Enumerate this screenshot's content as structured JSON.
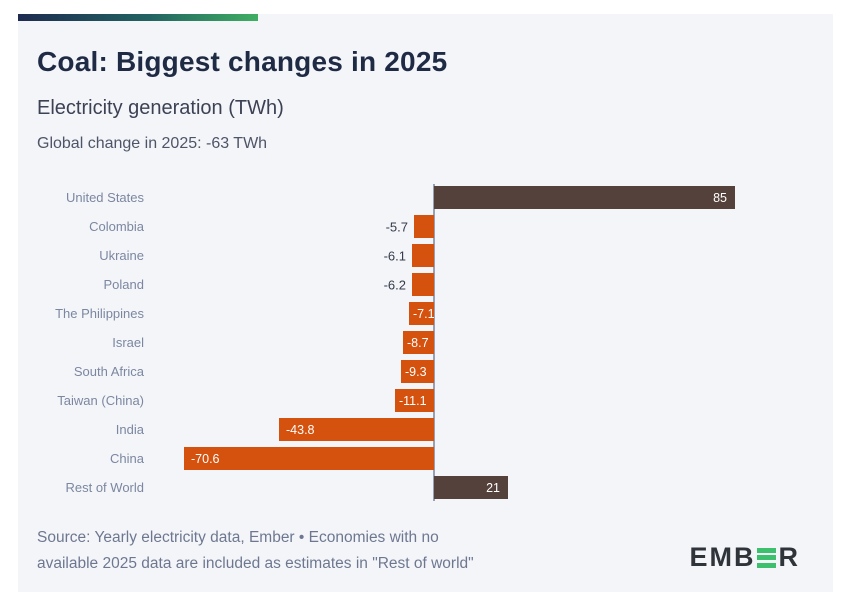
{
  "header": {
    "title": "Coal: Biggest changes in 2025",
    "subtitle": "Electricity generation (TWh)",
    "annotation": "Global change in 2025: -63 TWh"
  },
  "chart_data": {
    "type": "bar",
    "orientation": "horizontal",
    "unit": "TWh",
    "title": "Coal: Biggest changes in 2025",
    "subtitle": "Electricity generation (TWh)",
    "categories": [
      "United States",
      "Colombia",
      "Ukraine",
      "Poland",
      "The Philippines",
      "Israel",
      "South Africa",
      "Taiwan (China)",
      "India",
      "China",
      "Rest of World"
    ],
    "values": [
      85,
      -5.7,
      -6.1,
      -6.2,
      -7.1,
      -8.7,
      -9.3,
      -11.1,
      -43.8,
      -70.6,
      21
    ],
    "value_labels": [
      "85",
      "-5.7",
      "-6.1",
      "-6.2",
      "-7.1",
      "-8.7",
      "-9.3",
      "-11.1",
      "-43.8",
      "-70.6",
      "21"
    ],
    "xlim": [
      -82,
      107
    ],
    "grid": false,
    "legend": false,
    "zero_axis": true,
    "positive_color": "#54413b",
    "negative_color": "#d4510e",
    "axis_color": "#98a1b3",
    "label_color": "#7b87a0",
    "value_inside_color": "#ffffff",
    "value_outside_color": "#343b4a"
  },
  "footer": {
    "source_line1": "Source: Yearly electricity data, Ember • Economies with no",
    "source_line2": "available 2025 data are included as estimates in \"Rest of world\"",
    "logo": {
      "left_letters": "EMB",
      "right_letter": "R",
      "green": "#3cc06e",
      "dark": "#2e343a"
    }
  },
  "brand": {
    "gradient_start": "#1d2b50",
    "gradient_mid": "#226362",
    "gradient_end": "#3fae63",
    "card_background": "#f4f5f9"
  }
}
